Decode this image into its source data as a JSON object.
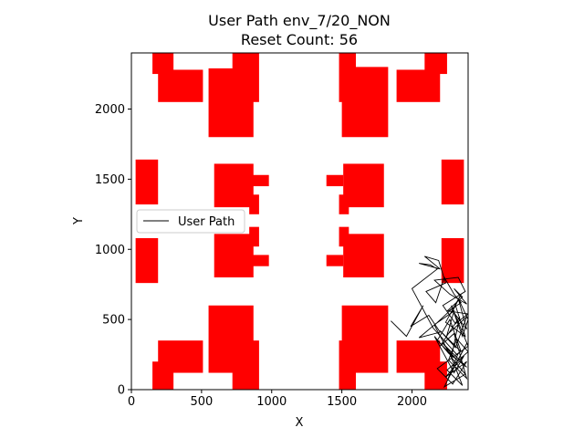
{
  "chart_data": {
    "type": "line",
    "title": "User Path env_7/20_NON",
    "subtitle": "Reset Count: 56",
    "xlabel": "X",
    "ylabel": "Y",
    "xlim": [
      0,
      2400
    ],
    "ylim": [
      0,
      2400
    ],
    "x_ticks": [
      0,
      500,
      1000,
      1500,
      2000
    ],
    "y_ticks": [
      0,
      500,
      1000,
      1500,
      2000
    ],
    "legend": {
      "placement": "center-left",
      "entries": [
        "User Path"
      ]
    },
    "obstacle_color": "#ff0000",
    "path_color": "#000000",
    "obstacles": [
      {
        "x0": 150,
        "x1": 300,
        "y0": 2250,
        "y1": 2400
      },
      {
        "x0": 190,
        "x1": 510,
        "y0": 2050,
        "y1": 2280
      },
      {
        "x0": 550,
        "x1": 870,
        "y0": 1800,
        "y1": 2290
      },
      {
        "x0": 720,
        "x1": 910,
        "y0": 2050,
        "y1": 2400
      },
      {
        "x0": 1480,
        "x1": 1600,
        "y0": 2050,
        "y1": 2400
      },
      {
        "x0": 1500,
        "x1": 1830,
        "y0": 1800,
        "y1": 2300
      },
      {
        "x0": 1890,
        "x1": 2200,
        "y0": 2050,
        "y1": 2280
      },
      {
        "x0": 2090,
        "x1": 2250,
        "y0": 2250,
        "y1": 2400
      },
      {
        "x0": 30,
        "x1": 190,
        "y0": 1320,
        "y1": 1640
      },
      {
        "x0": 590,
        "x1": 870,
        "y0": 1300,
        "y1": 1610
      },
      {
        "x0": 850,
        "x1": 980,
        "y0": 1450,
        "y1": 1530
      },
      {
        "x0": 840,
        "x1": 910,
        "y0": 1250,
        "y1": 1390
      },
      {
        "x0": 1390,
        "x1": 1510,
        "y0": 1450,
        "y1": 1530
      },
      {
        "x0": 1480,
        "x1": 1550,
        "y0": 1250,
        "y1": 1390
      },
      {
        "x0": 1510,
        "x1": 1800,
        "y0": 1300,
        "y1": 1610
      },
      {
        "x0": 2210,
        "x1": 2370,
        "y0": 1320,
        "y1": 1640
      },
      {
        "x0": 30,
        "x1": 190,
        "y0": 760,
        "y1": 1080
      },
      {
        "x0": 590,
        "x1": 870,
        "y0": 800,
        "y1": 1110
      },
      {
        "x0": 850,
        "x1": 980,
        "y0": 880,
        "y1": 960
      },
      {
        "x0": 840,
        "x1": 910,
        "y0": 1020,
        "y1": 1160
      },
      {
        "x0": 1390,
        "x1": 1510,
        "y0": 880,
        "y1": 960
      },
      {
        "x0": 1480,
        "x1": 1550,
        "y0": 1020,
        "y1": 1160
      },
      {
        "x0": 1510,
        "x1": 1800,
        "y0": 800,
        "y1": 1110
      },
      {
        "x0": 2210,
        "x1": 2370,
        "y0": 760,
        "y1": 1080
      },
      {
        "x0": 150,
        "x1": 300,
        "y0": 0,
        "y1": 200
      },
      {
        "x0": 190,
        "x1": 510,
        "y0": 120,
        "y1": 350
      },
      {
        "x0": 550,
        "x1": 870,
        "y0": 120,
        "y1": 600
      },
      {
        "x0": 720,
        "x1": 910,
        "y0": 0,
        "y1": 350
      },
      {
        "x0": 1480,
        "x1": 1600,
        "y0": 0,
        "y1": 350
      },
      {
        "x0": 1500,
        "x1": 1830,
        "y0": 120,
        "y1": 600
      },
      {
        "x0": 1890,
        "x1": 2200,
        "y0": 120,
        "y1": 350
      },
      {
        "x0": 2090,
        "x1": 2250,
        "y0": 0,
        "y1": 200
      }
    ],
    "series": [
      {
        "x": [
          1850,
          1960,
          2080,
          1990,
          2120,
          2200,
          2050,
          2170,
          2300,
          2250,
          2390,
          2310,
          2200,
          2350,
          2270,
          2180,
          2320,
          2220,
          2390,
          2260,
          2160,
          2300,
          2370,
          2240,
          2390,
          2290,
          2180,
          2330,
          2250,
          2390,
          2310,
          2230,
          2380,
          2280,
          2360,
          2250,
          2400,
          2320,
          2260,
          2390,
          2300,
          2200,
          2340,
          2280,
          2160,
          2310,
          2380,
          2240,
          2350,
          2290,
          2390,
          2330,
          2400,
          2360,
          2280,
          2400,
          2320,
          2150,
          2000,
          2180,
          2130,
          2050,
          2200,
          2090,
          2190,
          2240,
          2100,
          2170,
          2230,
          2300,
          2350,
          2260,
          2400,
          2310,
          2220,
          2380,
          2330,
          2160,
          2270,
          2390,
          2300,
          2360,
          2250
        ],
        "y": [
          490,
          380,
          600,
          450,
          530,
          410,
          370,
          470,
          560,
          390,
          520,
          300,
          420,
          270,
          500,
          350,
          210,
          330,
          160,
          260,
          380,
          120,
          240,
          90,
          200,
          40,
          150,
          260,
          60,
          330,
          180,
          20,
          110,
          230,
          30,
          140,
          270,
          360,
          210,
          80,
          400,
          310,
          520,
          230,
          460,
          600,
          380,
          480,
          680,
          560,
          430,
          650,
          500,
          380,
          600,
          310,
          250,
          440,
          720,
          860,
          890,
          900,
          860,
          950,
          920,
          760,
          700,
          620,
          800,
          680,
          620,
          560,
          540,
          470,
          600,
          700,
          800,
          780,
          680,
          610,
          720,
          660,
          560
        ]
      }
    ]
  }
}
